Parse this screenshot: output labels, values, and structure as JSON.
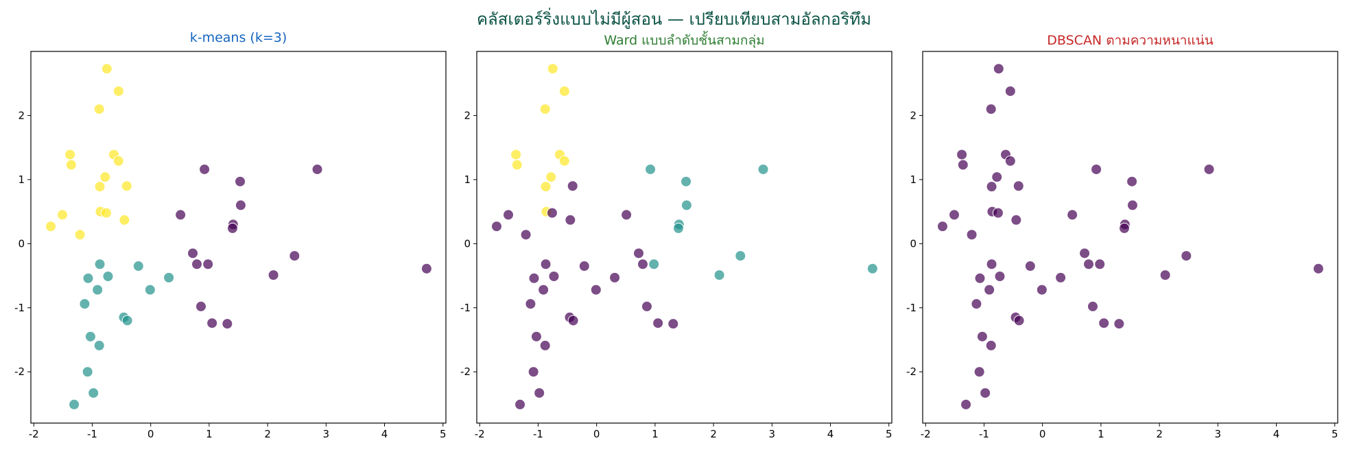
{
  "figure": {
    "title": "คลัสเตอร์ริ่งแบบไม่มีผู้สอน — เปรียบเทียบสามอัลกอริทึม",
    "title_color": "#0b5345"
  },
  "colors": {
    "cluster_0": "#440154",
    "cluster_1": "#21918c",
    "cluster_2": "#fde725"
  },
  "chart_data": [
    {
      "type": "scatter",
      "title": "k-means (k=3)",
      "title_color": "#1565c0",
      "xlabel": "",
      "ylabel": "",
      "xlim": [
        -2.05,
        5.05
      ],
      "ylim": [
        -2.8,
        3.0
      ],
      "xticks": [
        -2,
        -1,
        0,
        1,
        2,
        3,
        4,
        5
      ],
      "yticks": [
        -2,
        -1,
        0,
        1,
        2
      ],
      "grid": false,
      "labels_ref": "km"
    },
    {
      "type": "scatter",
      "title": "Ward แบบลำดับชั้นสามกลุ่ม",
      "title_color": "#2e7d32",
      "xlabel": "",
      "ylabel": "",
      "xlim": [
        -2.05,
        5.05
      ],
      "ylim": [
        -2.8,
        3.0
      ],
      "xticks": [
        -2,
        -1,
        0,
        1,
        2,
        3,
        4,
        5
      ],
      "yticks": [
        -2,
        -1,
        0,
        1,
        2
      ],
      "grid": false,
      "labels_ref": "ward"
    },
    {
      "type": "scatter",
      "title": "DBSCAN ตามความหนาแน่น",
      "title_color": "#c62828",
      "xlabel": "",
      "ylabel": "",
      "xlim": [
        -2.05,
        5.05
      ],
      "ylim": [
        -2.8,
        3.0
      ],
      "xticks": [
        -2,
        -1,
        0,
        1,
        2,
        3,
        4,
        5
      ],
      "yticks": [
        -2,
        -1,
        0,
        1,
        2
      ],
      "grid": false,
      "labels_ref": "dbscan"
    }
  ],
  "points": [
    {
      "x": -0.75,
      "y": 2.73,
      "km": 2,
      "ward": 2,
      "dbscan": 0
    },
    {
      "x": -0.55,
      "y": 2.38,
      "km": 2,
      "ward": 2,
      "dbscan": 0
    },
    {
      "x": -0.88,
      "y": 2.1,
      "km": 2,
      "ward": 2,
      "dbscan": 0
    },
    {
      "x": -1.38,
      "y": 1.39,
      "km": 2,
      "ward": 2,
      "dbscan": 0
    },
    {
      "x": -0.63,
      "y": 1.39,
      "km": 2,
      "ward": 2,
      "dbscan": 0
    },
    {
      "x": -1.36,
      "y": 1.23,
      "km": 2,
      "ward": 2,
      "dbscan": 0
    },
    {
      "x": -0.55,
      "y": 1.29,
      "km": 2,
      "ward": 2,
      "dbscan": 0
    },
    {
      "x": -0.78,
      "y": 1.04,
      "km": 2,
      "ward": 2,
      "dbscan": 0
    },
    {
      "x": -0.87,
      "y": 0.89,
      "km": 2,
      "ward": 2,
      "dbscan": 0
    },
    {
      "x": -0.41,
      "y": 0.9,
      "km": 2,
      "ward": 0,
      "dbscan": 0
    },
    {
      "x": -0.86,
      "y": 0.5,
      "km": 2,
      "ward": 2,
      "dbscan": 0
    },
    {
      "x": -0.76,
      "y": 0.48,
      "km": 2,
      "ward": 0,
      "dbscan": 0
    },
    {
      "x": -1.51,
      "y": 0.45,
      "km": 2,
      "ward": 0,
      "dbscan": 0
    },
    {
      "x": -0.45,
      "y": 0.37,
      "km": 2,
      "ward": 0,
      "dbscan": 0
    },
    {
      "x": -1.71,
      "y": 0.27,
      "km": 2,
      "ward": 0,
      "dbscan": 0
    },
    {
      "x": -1.21,
      "y": 0.14,
      "km": 2,
      "ward": 0,
      "dbscan": 0
    },
    {
      "x": 0.92,
      "y": 1.16,
      "km": 0,
      "ward": 1,
      "dbscan": 0
    },
    {
      "x": 2.85,
      "y": 1.16,
      "km": 0,
      "ward": 1,
      "dbscan": 0
    },
    {
      "x": 1.53,
      "y": 0.97,
      "km": 0,
      "ward": 1,
      "dbscan": 0
    },
    {
      "x": 1.54,
      "y": 0.6,
      "km": 0,
      "ward": 1,
      "dbscan": 0
    },
    {
      "x": 0.51,
      "y": 0.45,
      "km": 0,
      "ward": 0,
      "dbscan": 0
    },
    {
      "x": 1.41,
      "y": 0.3,
      "km": 0,
      "ward": 1,
      "dbscan": 0
    },
    {
      "x": 1.4,
      "y": 0.24,
      "km": 0,
      "ward": 1,
      "dbscan": 0
    },
    {
      "x": 0.72,
      "y": -0.15,
      "km": 0,
      "ward": 0,
      "dbscan": 0
    },
    {
      "x": 2.46,
      "y": -0.19,
      "km": 0,
      "ward": 1,
      "dbscan": 0
    },
    {
      "x": 0.79,
      "y": -0.32,
      "km": 0,
      "ward": 0,
      "dbscan": 0
    },
    {
      "x": 0.98,
      "y": -0.32,
      "km": 0,
      "ward": 1,
      "dbscan": 0
    },
    {
      "x": 2.1,
      "y": -0.49,
      "km": 0,
      "ward": 1,
      "dbscan": 0
    },
    {
      "x": 4.72,
      "y": -0.39,
      "km": 0,
      "ward": 1,
      "dbscan": 0
    },
    {
      "x": 0.86,
      "y": -0.98,
      "km": 0,
      "ward": 0,
      "dbscan": 0
    },
    {
      "x": 1.05,
      "y": -1.24,
      "km": 0,
      "ward": 0,
      "dbscan": 0
    },
    {
      "x": 1.31,
      "y": -1.25,
      "km": 0,
      "ward": 0,
      "dbscan": 0
    },
    {
      "x": -0.87,
      "y": -0.32,
      "km": 1,
      "ward": 0,
      "dbscan": 0
    },
    {
      "x": -0.21,
      "y": -0.35,
      "km": 1,
      "ward": 0,
      "dbscan": 0
    },
    {
      "x": -0.73,
      "y": -0.51,
      "km": 1,
      "ward": 0,
      "dbscan": 0
    },
    {
      "x": -1.07,
      "y": -0.54,
      "km": 1,
      "ward": 0,
      "dbscan": 0
    },
    {
      "x": 0.31,
      "y": -0.53,
      "km": 1,
      "ward": 0,
      "dbscan": 0
    },
    {
      "x": -0.91,
      "y": -0.72,
      "km": 1,
      "ward": 0,
      "dbscan": 0
    },
    {
      "x": -0.01,
      "y": -0.72,
      "km": 1,
      "ward": 0,
      "dbscan": 0
    },
    {
      "x": -1.13,
      "y": -0.94,
      "km": 1,
      "ward": 0,
      "dbscan": 0
    },
    {
      "x": -0.46,
      "y": -1.15,
      "km": 1,
      "ward": 0,
      "dbscan": 0
    },
    {
      "x": -0.4,
      "y": -1.2,
      "km": 1,
      "ward": 0,
      "dbscan": 0
    },
    {
      "x": -1.03,
      "y": -1.45,
      "km": 1,
      "ward": 0,
      "dbscan": 0
    },
    {
      "x": -0.88,
      "y": -1.59,
      "km": 1,
      "ward": 0,
      "dbscan": 0
    },
    {
      "x": -1.08,
      "y": -2.0,
      "km": 1,
      "ward": 0,
      "dbscan": 0
    },
    {
      "x": -0.98,
      "y": -2.33,
      "km": 1,
      "ward": 0,
      "dbscan": 0
    },
    {
      "x": -1.31,
      "y": -2.51,
      "km": 1,
      "ward": 0,
      "dbscan": 0
    }
  ]
}
